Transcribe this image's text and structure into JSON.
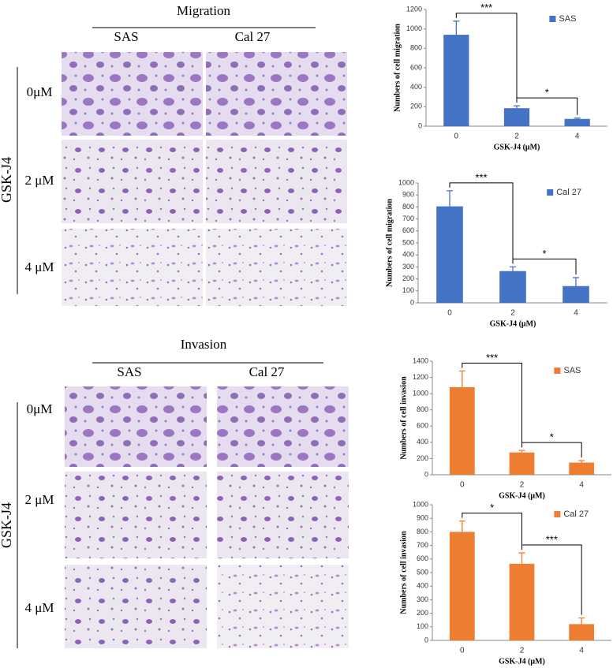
{
  "image_panels": [
    {
      "title": "Migration",
      "columns": [
        "SAS",
        "Cal 27"
      ],
      "rows": [
        "0μM",
        "2 μM",
        "4 μM"
      ],
      "group_label": "GSK-J4"
    },
    {
      "title": "Invasion",
      "columns": [
        "SAS",
        "Cal 27"
      ],
      "rows": [
        "0μM",
        "2 μM",
        "4 μM"
      ],
      "group_label": "GSK-J4"
    }
  ],
  "chart_data": [
    {
      "type": "bar",
      "categories": [
        "0",
        "2",
        "4"
      ],
      "x_label": "GSK-J4 (μM)",
      "y_label": "Numbers of cell migration",
      "series": [
        {
          "name": "SAS",
          "color": "#4472c4",
          "values": [
            940,
            185,
            75
          ],
          "errors": [
            140,
            25,
            8
          ]
        }
      ],
      "ylim": [
        0,
        1200
      ],
      "yticks": [
        0,
        200,
        400,
        600,
        800,
        1000,
        1200
      ],
      "significance": [
        {
          "label": "***",
          "between": [
            "0",
            "2"
          ]
        },
        {
          "label": "*",
          "between": [
            "2",
            "4"
          ]
        }
      ]
    },
    {
      "type": "bar",
      "categories": [
        "0",
        "2",
        "4"
      ],
      "x_label": "GSK-J4 (μM)",
      "y_label": "Numbers of cell migration",
      "series": [
        {
          "name": "Cal 27",
          "color": "#4472c4",
          "values": [
            805,
            265,
            140
          ],
          "errors": [
            130,
            35,
            70
          ]
        }
      ],
      "ylim": [
        0,
        1000
      ],
      "yticks": [
        0,
        100,
        200,
        300,
        400,
        500,
        600,
        700,
        800,
        900,
        1000
      ],
      "significance": [
        {
          "label": "***",
          "between": [
            "0",
            "2"
          ]
        },
        {
          "label": "*",
          "between": [
            "2",
            "4"
          ]
        }
      ]
    },
    {
      "type": "bar",
      "categories": [
        "0",
        "2",
        "4"
      ],
      "x_label": "GSK-J4 (μM)",
      "y_label": "Numbers of cell invasion",
      "series": [
        {
          "name": "SAS",
          "color": "#ed7d31",
          "values": [
            1080,
            275,
            150
          ],
          "errors": [
            200,
            25,
            25
          ]
        }
      ],
      "ylim": [
        0,
        1400
      ],
      "yticks": [
        0,
        200,
        400,
        600,
        800,
        1000,
        1200,
        1400
      ],
      "significance": [
        {
          "label": "***",
          "between": [
            "0",
            "2"
          ]
        },
        {
          "label": "*",
          "between": [
            "2",
            "4"
          ]
        }
      ]
    },
    {
      "type": "bar",
      "categories": [
        "0",
        "2",
        "4"
      ],
      "x_label": "GSK-J4 (μM)",
      "y_label": "Numbers of cell invasion",
      "series": [
        {
          "name": "Cal 27",
          "color": "#ed7d31",
          "values": [
            800,
            565,
            120
          ],
          "errors": [
            80,
            80,
            45
          ]
        }
      ],
      "ylim": [
        0,
        1000
      ],
      "yticks": [
        0,
        100,
        200,
        300,
        400,
        500,
        600,
        700,
        800,
        900,
        1000
      ],
      "significance": [
        {
          "label": "*",
          "between": [
            "0",
            "2"
          ]
        },
        {
          "label": "***",
          "between": [
            "2",
            "4"
          ]
        }
      ]
    }
  ]
}
